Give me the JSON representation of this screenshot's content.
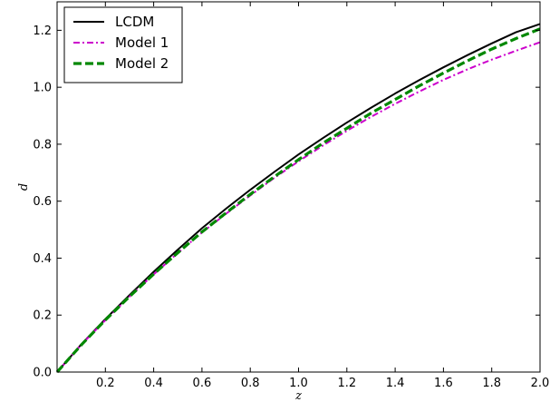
{
  "chart_data": {
    "type": "line",
    "title": "",
    "xlabel": "z",
    "ylabel": "d",
    "xlim": [
      0.0,
      2.0
    ],
    "ylim": [
      0.0,
      1.3
    ],
    "x_ticks": [
      0.2,
      0.4,
      0.6,
      0.8,
      1.0,
      1.2,
      1.4,
      1.6,
      1.8,
      2.0
    ],
    "x_tick_labels": [
      "0.2",
      "0.4",
      "0.6",
      "0.8",
      "1.0",
      "1.2",
      "1.4",
      "1.6",
      "1.8",
      "2.0"
    ],
    "y_ticks": [
      0.0,
      0.2,
      0.4,
      0.6,
      0.8,
      1.0,
      1.2
    ],
    "y_tick_labels": [
      "0.0",
      "0.2",
      "0.4",
      "0.6",
      "0.8",
      "1.0",
      "1.2"
    ],
    "grid": false,
    "legend_position": "top-left",
    "x": [
      0.0,
      0.1,
      0.2,
      0.3,
      0.4,
      0.5,
      0.6,
      0.7,
      0.8,
      0.9,
      1.0,
      1.1,
      1.2,
      1.3,
      1.4,
      1.5,
      1.6,
      1.7,
      1.8,
      1.9,
      2.0
    ],
    "series": [
      {
        "name": "LCDM",
        "color": "#000000",
        "dash": "solid",
        "values": [
          0.0,
          0.097,
          0.186,
          0.27,
          0.352,
          0.43,
          0.505,
          0.574,
          0.64,
          0.703,
          0.764,
          0.821,
          0.876,
          0.928,
          0.978,
          1.025,
          1.07,
          1.113,
          1.154,
          1.193,
          1.222
        ]
      },
      {
        "name": "Model 1",
        "color": "#cc00cc",
        "dash": "dashdot",
        "values": [
          0.0,
          0.096,
          0.182,
          0.265,
          0.343,
          0.418,
          0.49,
          0.556,
          0.62,
          0.682,
          0.74,
          0.795,
          0.847,
          0.896,
          0.942,
          0.985,
          1.026,
          1.063,
          1.097,
          1.128,
          1.158
        ]
      },
      {
        "name": "Model 2",
        "color": "#008800",
        "dash": "dashed",
        "values": [
          0.0,
          0.095,
          0.183,
          0.265,
          0.344,
          0.419,
          0.492,
          0.559,
          0.624,
          0.686,
          0.746,
          0.803,
          0.856,
          0.909,
          0.957,
          1.005,
          1.05,
          1.093,
          1.134,
          1.171,
          1.205
        ]
      }
    ]
  }
}
